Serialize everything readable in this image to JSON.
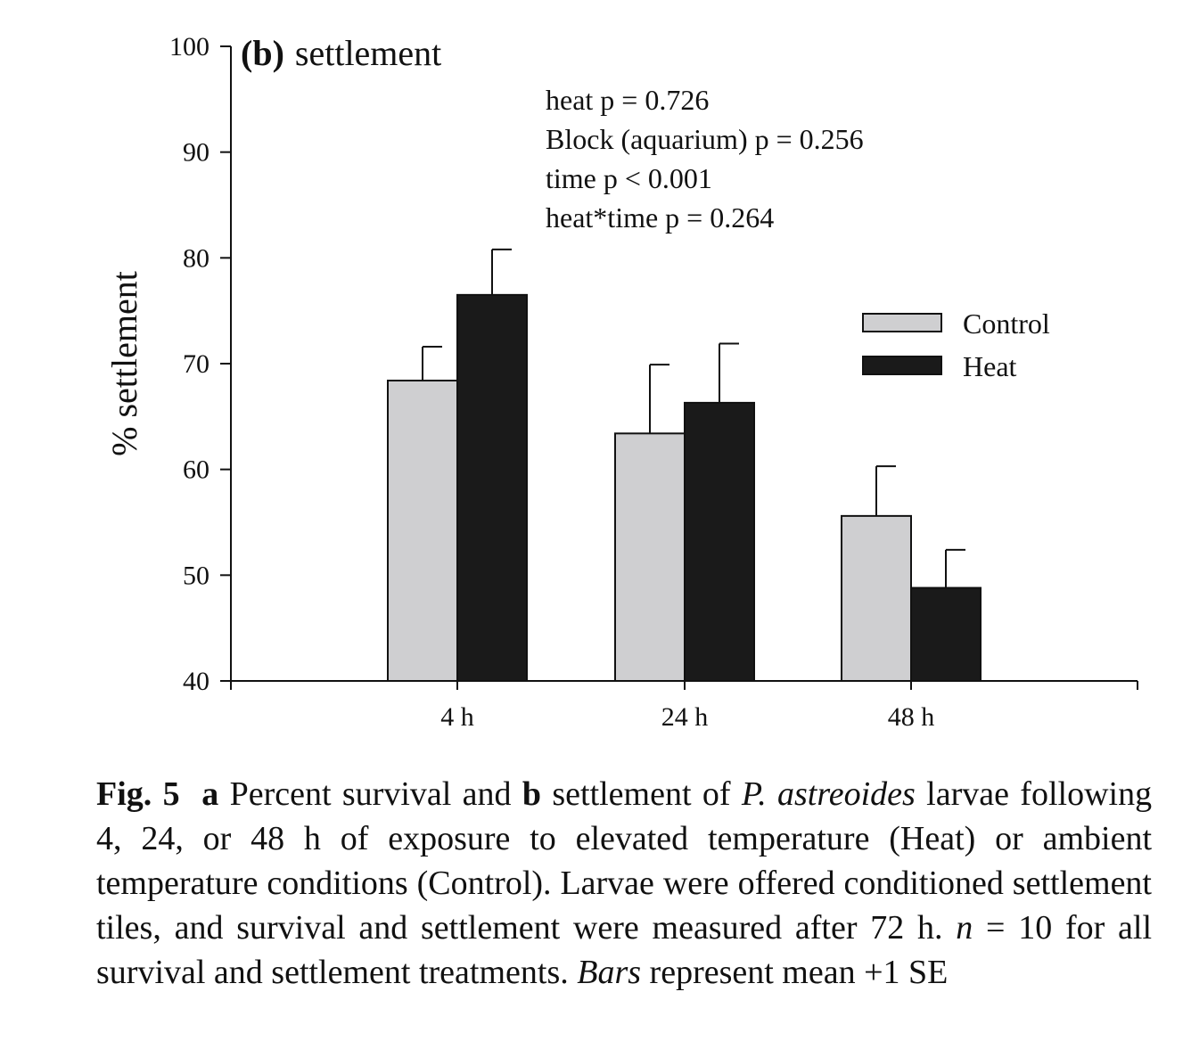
{
  "chart_data": {
    "type": "bar",
    "panel_label": "(b)",
    "title": "settlement",
    "ylabel": "% settlement",
    "xlabel": "",
    "ylim": [
      40,
      100
    ],
    "yticks": [
      40,
      50,
      60,
      70,
      80,
      90,
      100
    ],
    "categories": [
      "4 h",
      "24 h",
      "48 h"
    ],
    "series": [
      {
        "name": "Control",
        "color": "#cfcfd1",
        "values": [
          68.4,
          63.4,
          55.6
        ],
        "se": [
          3.2,
          6.5,
          4.7
        ]
      },
      {
        "name": "Heat",
        "color": "#1a1a1a",
        "values": [
          76.5,
          66.3,
          48.8
        ],
        "se": [
          4.3,
          5.6,
          3.6
        ]
      }
    ],
    "error_bars": "mean +1 SE",
    "legend_position": "top-right",
    "grid": false,
    "annotations": [
      "heat p = 0.726",
      "Block (aquarium) p = 0.256",
      "time p < 0.001",
      "heat*time p = 0.264"
    ]
  },
  "caption": {
    "fig_label": "Fig. 5",
    "part_a": "a",
    "text_1": "Percent survival and",
    "part_b": "b",
    "text_2": "settlement of",
    "species": "P. astreoides",
    "text_3": "larvae following 4, 24, or 48 h of exposure to elevated temperature (Heat) or ambient temperature conditions (Control). Larvae were offered conditioned settlement tiles, and survival and settlement were measured after 72 h.",
    "n_symbol": "n",
    "text_4": "= 10 for all survival and settlement treatments.",
    "bars_word": "Bars",
    "text_5": "represent mean +1 SE"
  }
}
